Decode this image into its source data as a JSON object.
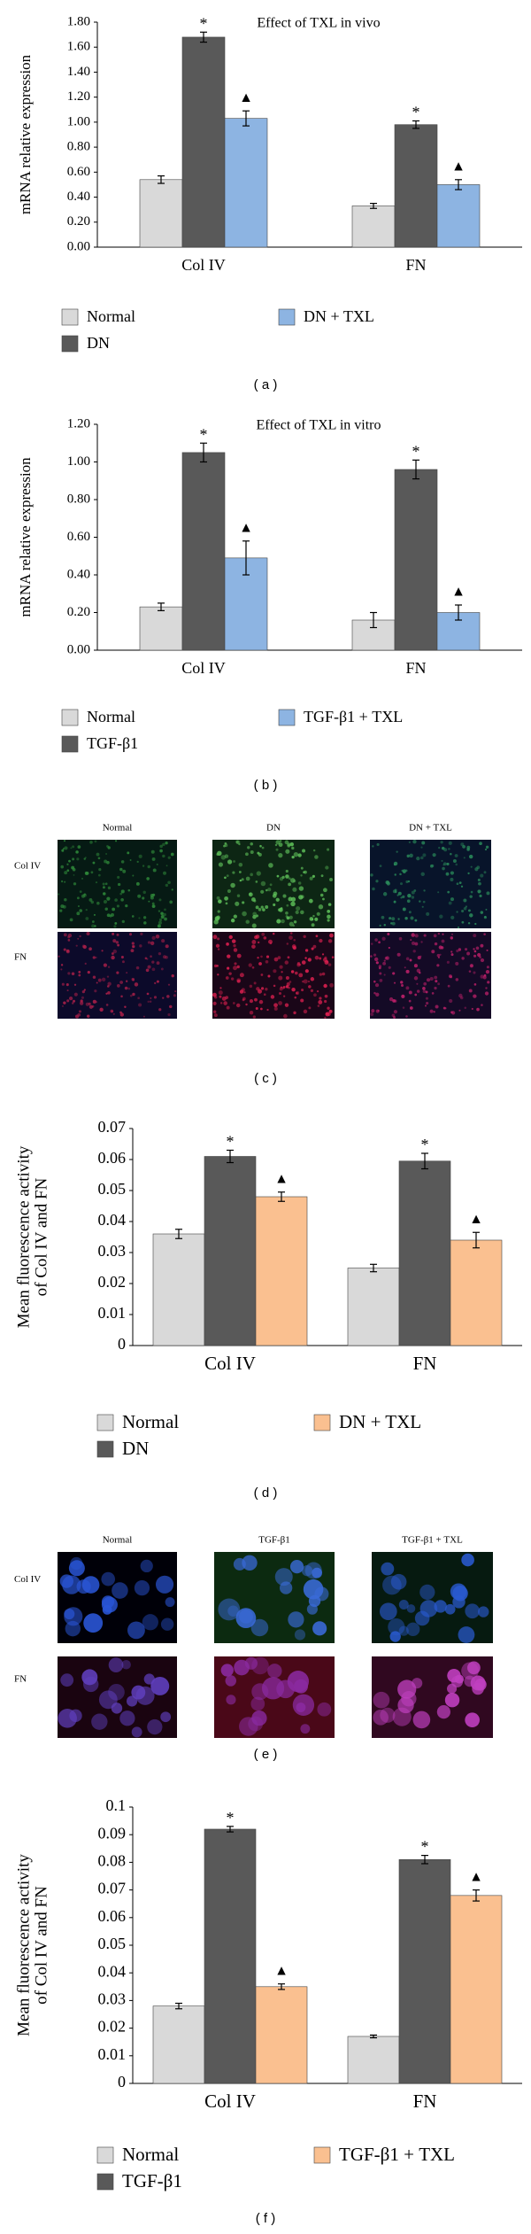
{
  "chart_data": [
    {
      "type": "bar",
      "title": "Effect of TXL in vivo",
      "y_label": [
        "mRNA relative expression"
      ],
      "categories": [
        "Col IV",
        "FN"
      ],
      "series": [
        {
          "name": "Normal",
          "color": "#d9d9d9",
          "values": [
            0.54,
            0.33
          ],
          "errors": [
            0.03,
            0.02
          ]
        },
        {
          "name": "DN",
          "color": "#595959",
          "values": [
            1.68,
            0.98
          ],
          "errors": [
            0.04,
            0.03
          ],
          "marker": "*"
        },
        {
          "name": "DN + TXL",
          "color": "#8db4e2",
          "values": [
            1.03,
            0.5
          ],
          "errors": [
            0.06,
            0.04
          ],
          "marker": "▲"
        }
      ],
      "ylim": [
        0,
        1.8
      ],
      "yticks": [
        {
          "value": 0,
          "label": "0.00"
        },
        {
          "value": 0.2,
          "label": "0.20"
        },
        {
          "value": 0.4,
          "label": "0.40"
        },
        {
          "value": 0.6,
          "label": "0.60"
        },
        {
          "value": 0.8,
          "label": "0.80"
        },
        {
          "value": 1,
          "label": "1.00"
        },
        {
          "value": 1.2,
          "label": "1.20"
        },
        {
          "value": 1.4,
          "label": "1.40"
        },
        {
          "value": 1.6,
          "label": "1.60"
        },
        {
          "value": 1.8,
          "label": "1.80"
        }
      ]
    },
    {
      "type": "bar",
      "title": "Effect of TXL in vitro",
      "y_label": [
        "mRNA relative expression"
      ],
      "categories": [
        "Col IV",
        "FN"
      ],
      "series": [
        {
          "name": "Normal",
          "color": "#d9d9d9",
          "values": [
            0.23,
            0.16
          ],
          "errors": [
            0.02,
            0.04
          ]
        },
        {
          "name": "TGF-β1",
          "color": "#595959",
          "values": [
            1.05,
            0.96
          ],
          "errors": [
            0.05,
            0.05
          ],
          "marker": "*"
        },
        {
          "name": "TGF-β1 + TXL",
          "color": "#8db4e2",
          "values": [
            0.49,
            0.2
          ],
          "errors": [
            0.09,
            0.04
          ],
          "marker": "▲"
        }
      ],
      "ylim": [
        0,
        1.2
      ],
      "yticks": [
        {
          "value": 0,
          "label": "0.00"
        },
        {
          "value": 0.2,
          "label": "0.20"
        },
        {
          "value": 0.4,
          "label": "0.40"
        },
        {
          "value": 0.6,
          "label": "0.60"
        },
        {
          "value": 0.8,
          "label": "0.80"
        },
        {
          "value": 1,
          "label": "1.00"
        },
        {
          "value": 1.2,
          "label": "1.20"
        }
      ]
    },
    {
      "type": "bar",
      "y_label": [
        "Mean fluorescence activity",
        "of Col IV and FN"
      ],
      "categories": [
        "Col IV",
        "FN"
      ],
      "series": [
        {
          "name": "Normal",
          "color": "#d9d9d9",
          "values": [
            0.036,
            0.025
          ],
          "errors": [
            0.0015,
            0.0012
          ]
        },
        {
          "name": "DN",
          "color": "#595959",
          "values": [
            0.061,
            0.0595
          ],
          "errors": [
            0.002,
            0.0025
          ],
          "marker": "*"
        },
        {
          "name": "DN + TXL",
          "color": "#fac090",
          "values": [
            0.048,
            0.034
          ],
          "errors": [
            0.0015,
            0.0025
          ],
          "marker": "▲"
        }
      ],
      "ylim": [
        0,
        0.07
      ],
      "yticks": [
        0,
        0.01,
        0.02,
        0.03,
        0.04,
        0.05,
        0.06,
        0.07
      ]
    },
    {
      "type": "bar",
      "y_label": [
        "Mean fluorescence activity",
        "of Col IV and FN"
      ],
      "categories": [
        "Col IV",
        "FN"
      ],
      "series": [
        {
          "name": "Normal",
          "color": "#d9d9d9",
          "values": [
            0.028,
            0.017
          ],
          "errors": [
            0.001,
            0.0005
          ]
        },
        {
          "name": "TGF-β1",
          "color": "#595959",
          "values": [
            0.092,
            0.081
          ],
          "errors": [
            0.001,
            0.0015
          ],
          "marker": "*"
        },
        {
          "name": "TGF-β1 + TXL",
          "color": "#fac090",
          "values": [
            0.035,
            0.068
          ],
          "errors": [
            0.001,
            0.002
          ],
          "marker": "▲"
        }
      ],
      "ylim": [
        0,
        0.1
      ],
      "yticks": [
        0,
        0.01,
        0.02,
        0.03,
        0.04,
        0.05,
        0.06,
        0.07,
        0.08,
        0.09,
        0.1
      ]
    }
  ],
  "images": [
    {
      "columns": [
        "Normal",
        "DN",
        "DN + TXL"
      ],
      "rows": [
        "Col IV",
        "FN"
      ]
    },
    {
      "columns": [
        "Normal",
        "TGF-β1",
        "TGF-β1 + TXL"
      ],
      "rows": [
        "Col IV",
        "FN"
      ]
    }
  ],
  "panel_labels": [
    "( a )",
    "( b )",
    "( c )",
    "( d )",
    "( e )",
    "( f )"
  ]
}
